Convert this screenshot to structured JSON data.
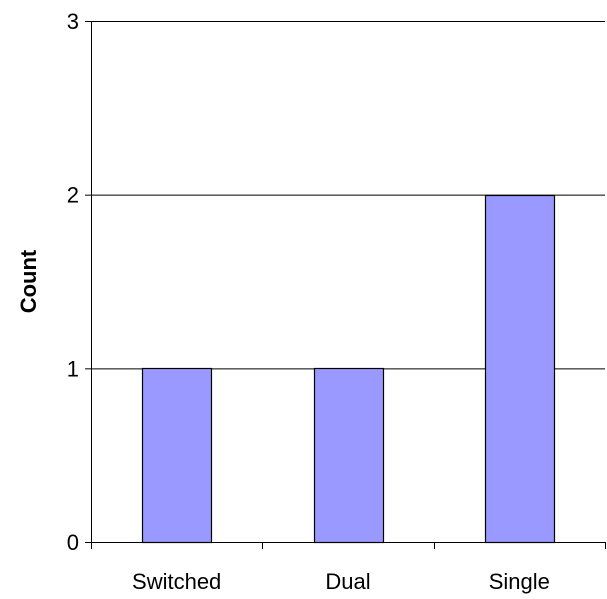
{
  "chart_data": {
    "type": "bar",
    "categories": [
      "Switched",
      "Dual",
      "Single"
    ],
    "values": [
      1,
      1,
      2
    ],
    "title": "",
    "xlabel": "",
    "ylabel": "Count",
    "ylim": [
      0,
      3
    ],
    "yticks": [
      0,
      1,
      2,
      3
    ],
    "grid": true,
    "legend": "none",
    "bar_color": "#9999ff",
    "bar_edge_color": "#000000",
    "grid_color": "#000000",
    "axis_color": "#000000"
  }
}
